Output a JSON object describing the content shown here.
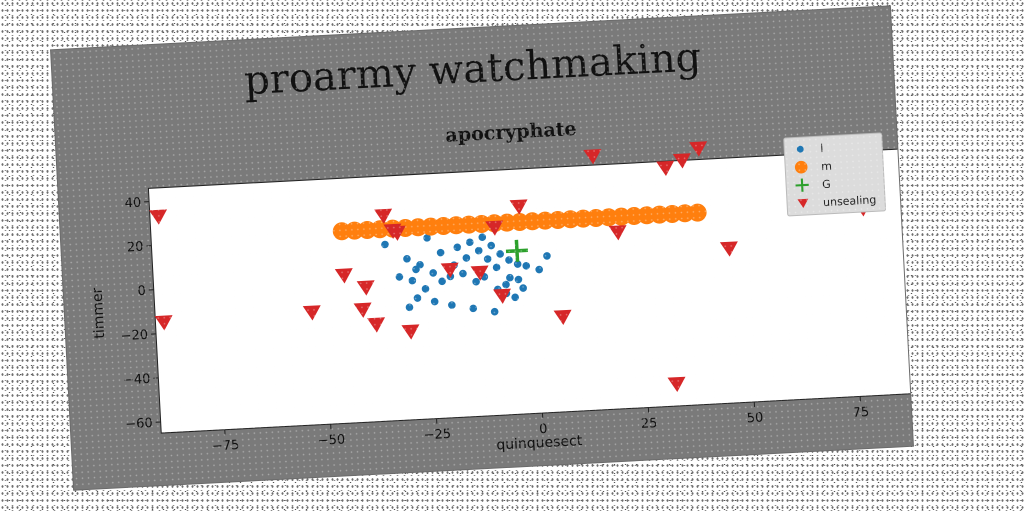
{
  "figure_title": "proarmy watchmaking",
  "chart_data": {
    "type": "scatter",
    "title": "apocryphate",
    "xlabel": "quinquesect",
    "ylabel": "timmer",
    "xlim": [
      -90,
      88
    ],
    "ylim": [
      -65,
      46
    ],
    "xticks": [
      -75,
      -50,
      -25,
      0,
      25,
      50,
      75
    ],
    "xtick_labels": [
      "−75",
      "−50",
      "−25",
      "0",
      "25",
      "50",
      "75"
    ],
    "yticks": [
      40,
      20,
      0,
      -20,
      -40,
      -60
    ],
    "ytick_labels": [
      "40",
      "20",
      "0",
      "−20",
      "−40",
      "−60"
    ],
    "grid": false,
    "legend_position": "top-right",
    "series": [
      {
        "name": "l",
        "marker": "circle",
        "color": "#1f77b4",
        "x": [
          -35,
          -30,
          -28,
          -32,
          -29,
          -27,
          -22,
          -18,
          -15,
          -12,
          -10,
          -8,
          -6,
          -4,
          -2,
          1,
          3,
          -24,
          -20,
          -17,
          -14,
          -12,
          -9,
          -7,
          -5,
          -30,
          -26,
          -22,
          -19,
          -16,
          -13,
          -11,
          -9,
          -6,
          -3,
          -28,
          -24,
          -20,
          -15,
          -10,
          -7,
          -4,
          -25
        ],
        "y": [
          15,
          8,
          3,
          0,
          -2,
          5,
          10,
          12,
          14,
          16,
          12,
          8,
          5,
          3,
          2,
          0,
          6,
          1,
          -1,
          0,
          -4,
          -2,
          -8,
          -10,
          -12,
          -14,
          -6,
          -3,
          4,
          7,
          10,
          6,
          2,
          -3,
          -8,
          -10,
          -12,
          -14,
          -16,
          -18,
          -6,
          -4,
          17
        ]
      },
      {
        "name": "m",
        "marker": "circle-large",
        "color": "#ff7f0e",
        "x": [
          -45,
          -42,
          -39,
          -36,
          -33,
          -30,
          -27,
          -24,
          -21,
          -18,
          -15,
          -12,
          -9,
          -6,
          -3,
          0,
          3,
          6,
          9,
          12,
          15,
          18,
          21,
          24,
          27,
          30,
          33,
          36,
          39
        ],
        "y": [
          22,
          22,
          22,
          22,
          22,
          22,
          22,
          22,
          22,
          22,
          22,
          22,
          22,
          22,
          22,
          22,
          22,
          22,
          22,
          22,
          22,
          22,
          22,
          22,
          22,
          22,
          22,
          22,
          22
        ]
      },
      {
        "name": "G",
        "marker": "plus",
        "color": "#2ca02c",
        "x": [
          -4
        ],
        "y": [
          9
        ]
      },
      {
        "name": "unsealing",
        "marker": "triangle-down",
        "color": "#d62728",
        "x": [
          -88,
          -88,
          -53,
          -45,
          -41,
          -40,
          -38,
          -35,
          -33,
          -32,
          -30,
          -20,
          -13,
          -9,
          -8,
          -3,
          6,
          15,
          20,
          32,
          32,
          36,
          40,
          46,
          78
        ],
        "y": [
          33,
          -15,
          -14,
          2,
          -14,
          -4,
          -21,
          28,
          21,
          20,
          -25,
          2,
          0,
          20,
          -11,
          29,
          -22,
          50,
          15,
          43,
          -55,
          46,
          51,
          5,
          20
        ]
      }
    ]
  }
}
